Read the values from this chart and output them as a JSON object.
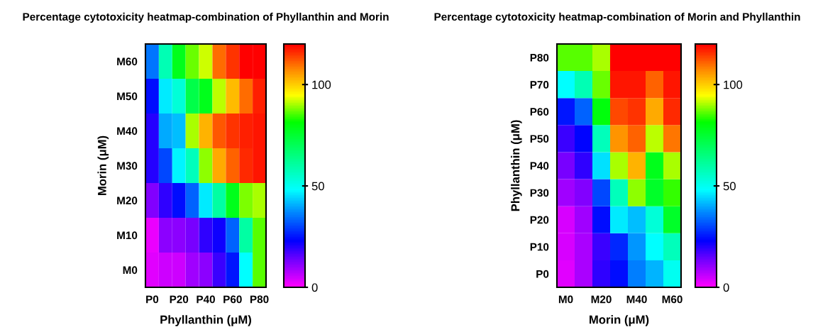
{
  "chart_data": [
    {
      "type": "heatmap",
      "title": "Percentage cytotoxicity heatmap-combination of Phyllanthin and Morin",
      "xlabel": "Phyllanthin (μM)",
      "ylabel": "Morin (μM)",
      "categories": [
        "P0",
        null,
        "P20",
        null,
        "P40",
        null,
        "P60",
        null,
        "P80"
      ],
      "y_categories": [
        "M60",
        "M50",
        "M40",
        "M30",
        "M20",
        "M10",
        "M0"
      ],
      "cells": [
        [
          35,
          58,
          78,
          87,
          92,
          110,
          115,
          120,
          120
        ],
        [
          24,
          46,
          53,
          72,
          78,
          91,
          102,
          110,
          117
        ],
        [
          20,
          40,
          42,
          90,
          103,
          112,
          115,
          117,
          118
        ],
        [
          20,
          30,
          47,
          57,
          89,
          104,
          111,
          116,
          118
        ],
        [
          12,
          19,
          24,
          33,
          46,
          60,
          78,
          88,
          90
        ],
        [
          2,
          11,
          11,
          13,
          19,
          22,
          33,
          60,
          86
        ],
        [
          3,
          5,
          5,
          9,
          11,
          18,
          25,
          48,
          86
        ]
      ],
      "clim": [
        0,
        120
      ],
      "cticks": [
        0,
        50,
        100
      ]
    },
    {
      "type": "heatmap",
      "title": "Percentage cytotoxicity heatmap-combination of Morin and Phyllanthin",
      "xlabel": "Morin (μM)",
      "ylabel": "Phyllanthin (μM)",
      "categories": [
        "M0",
        null,
        "M20",
        null,
        "M40",
        null,
        "M60"
      ],
      "y_categories": [
        "P80",
        "P70",
        "P60",
        "P50",
        "P40",
        "P30",
        "P20",
        "P10",
        "P0"
      ],
      "cells": [
        [
          86,
          86,
          90,
          120,
          120,
          120,
          120
        ],
        [
          48,
          58,
          87,
          118,
          118,
          111,
          118
        ],
        [
          25,
          33,
          80,
          113,
          115,
          104,
          116
        ],
        [
          18,
          23,
          57,
          106,
          111,
          91,
          109
        ],
        [
          13,
          19,
          45,
          90,
          103,
          78,
          90
        ],
        [
          9,
          12,
          30,
          57,
          89,
          76,
          84
        ],
        [
          4,
          9,
          24,
          46,
          42,
          53,
          76
        ],
        [
          4,
          8,
          18,
          27,
          38,
          48,
          57
        ],
        [
          3,
          8,
          19,
          24,
          36,
          41,
          50
        ]
      ],
      "clim": [
        0,
        120
      ],
      "cticks": [
        0,
        50,
        100
      ]
    }
  ]
}
